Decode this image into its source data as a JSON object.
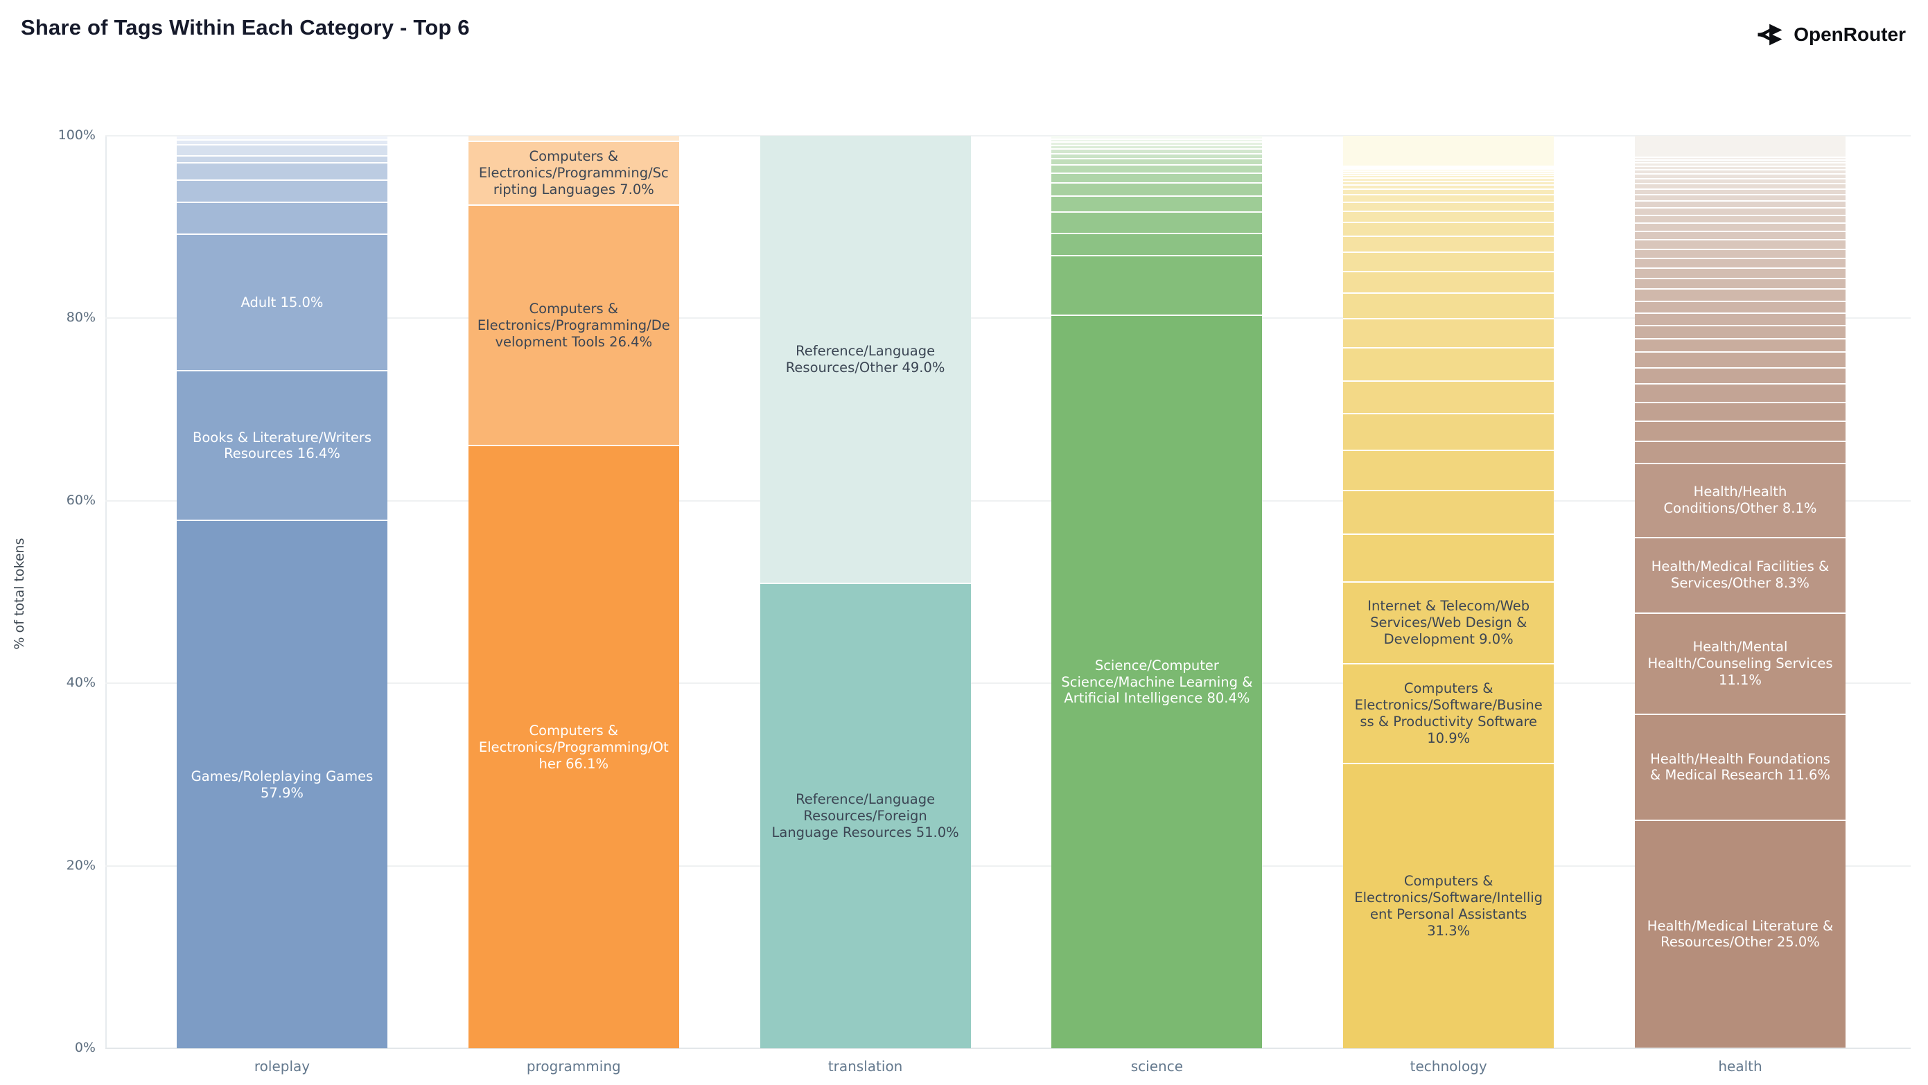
{
  "header": {
    "title": "Share of Tags Within Each Category - Top 6",
    "brand": "OpenRouter",
    "brand_icon": "openrouter-fork-arrows-icon"
  },
  "chart_data": {
    "type": "bar",
    "subtype": "100%-stacked-vertical",
    "title": "Share of Tags Within Each Category - Top 6",
    "xlabel": "",
    "ylabel": "% of total tokens",
    "ylim": [
      0,
      100
    ],
    "yticks": [
      "0%",
      "20%",
      "40%",
      "60%",
      "80%",
      "100%"
    ],
    "grid": "horizontal-faint",
    "legend": "none",
    "note": "Each bar stacks tag shares within one category; segments ordered largest at bottom to smallest at top; only large segments carry labels. Unlabeled small segment values are estimated from pixel heights.",
    "categories": [
      {
        "name": "roleplay",
        "color_dark": "#7d9cc5",
        "color_light": "#eff3fa",
        "segments_top_to_bottom": [
          {
            "v": 0.4
          },
          {
            "v": 0.5
          },
          {
            "v": 1.2
          },
          {
            "v": 0.8
          },
          {
            "v": 1.9
          },
          {
            "v": 2.4
          },
          {
            "v": 3.5
          },
          {
            "v": 15.0,
            "label": "Adult 15.0%",
            "tc": "w"
          },
          {
            "v": 16.4,
            "label": "Books & Literature/Writers Resources 16.4%",
            "tc": "w"
          },
          {
            "v": 57.9,
            "label": "Games/Roleplaying Games 57.9%",
            "tc": "w"
          }
        ]
      },
      {
        "name": "programming",
        "color_dark": "#f99c45",
        "color_light": "#fde8cf",
        "segments_top_to_bottom": [
          {
            "v": 0.5
          },
          {
            "v": 7.0,
            "label": "Computers & Electronics/Programming/Scripting Languages 7.0%",
            "tc": "d"
          },
          {
            "v": 26.4,
            "label": "Computers & Electronics/Programming/Development Tools 26.4%",
            "tc": "d"
          },
          {
            "v": 66.1,
            "label": "Computers & Electronics/Programming/Other 66.1%",
            "tc": "w"
          }
        ]
      },
      {
        "name": "translation",
        "color_dark": "#95cbc2",
        "color_light": "#dcece9",
        "segments_top_to_bottom": [
          {
            "v": 49.0,
            "label": "Reference/Language Resources/Other 49.0%",
            "tc": "d"
          },
          {
            "v": 51.0,
            "label": "Reference/Language Resources/Foreign Language Resources 51.0%",
            "tc": "d"
          }
        ]
      },
      {
        "name": "science",
        "color_dark": "#7bb971",
        "color_light": "#f5faf3",
        "segments_top_to_bottom": [
          {
            "v": 0.3
          },
          {
            "v": 0.3
          },
          {
            "v": 0.4
          },
          {
            "v": 0.4
          },
          {
            "v": 0.5
          },
          {
            "v": 0.5
          },
          {
            "v": 0.7
          },
          {
            "v": 0.9
          },
          {
            "v": 1.1
          },
          {
            "v": 1.4
          },
          {
            "v": 1.8
          },
          {
            "v": 2.3
          },
          {
            "v": 2.5
          },
          {
            "v": 6.5
          },
          {
            "v": 80.4,
            "label": "Science/Computer Science/Machine Learning & Artificial Intelligence 80.4%",
            "tc": "w"
          }
        ]
      },
      {
        "name": "technology",
        "color_dark": "#efce66",
        "color_light": "#fdfae8",
        "segments_top_to_bottom": [
          {
            "v": 3.3
          },
          {
            "v": 0.15
          },
          {
            "v": 0.15
          },
          {
            "v": 0.2
          },
          {
            "v": 0.2
          },
          {
            "v": 0.25
          },
          {
            "v": 0.3
          },
          {
            "v": 0.35
          },
          {
            "v": 0.4
          },
          {
            "v": 0.5
          },
          {
            "v": 0.6
          },
          {
            "v": 0.8
          },
          {
            "v": 1.0
          },
          {
            "v": 1.2
          },
          {
            "v": 1.5
          },
          {
            "v": 1.8
          },
          {
            "v": 2.1
          },
          {
            "v": 2.4
          },
          {
            "v": 2.8
          },
          {
            "v": 3.2
          },
          {
            "v": 3.6
          },
          {
            "v": 3.6
          },
          {
            "v": 4.0
          },
          {
            "v": 4.4
          },
          {
            "v": 4.8
          },
          {
            "v": 5.2
          },
          {
            "v": 9.0,
            "label": "Internet & Telecom/Web Services/Web Design & Development 9.0%",
            "tc": "d"
          },
          {
            "v": 10.9,
            "label": "Computers & Electronics/Software/Business & Productivity Software 10.9%",
            "tc": "d"
          },
          {
            "v": 31.3,
            "label": "Computers & Electronics/Software/Intelligent Personal Assistants 31.3%",
            "tc": "d"
          }
        ]
      },
      {
        "name": "health",
        "color_dark": "#b58e7b",
        "color_light": "#f5f2ee",
        "segments_top_to_bottom": [
          {
            "v": 2.3
          },
          {
            "v": 0.3
          },
          {
            "v": 0.3
          },
          {
            "v": 0.35
          },
          {
            "v": 0.4
          },
          {
            "v": 0.45
          },
          {
            "v": 0.5
          },
          {
            "v": 0.55
          },
          {
            "v": 0.6
          },
          {
            "v": 0.65
          },
          {
            "v": 0.7
          },
          {
            "v": 0.75
          },
          {
            "v": 0.8
          },
          {
            "v": 0.85
          },
          {
            "v": 0.9
          },
          {
            "v": 0.95
          },
          {
            "v": 1.0
          },
          {
            "v": 1.0
          },
          {
            "v": 1.1
          },
          {
            "v": 1.1
          },
          {
            "v": 1.2
          },
          {
            "v": 1.3
          },
          {
            "v": 1.3
          },
          {
            "v": 1.4
          },
          {
            "v": 1.4
          },
          {
            "v": 1.5
          },
          {
            "v": 1.7
          },
          {
            "v": 1.8
          },
          {
            "v": 2.0
          },
          {
            "v": 2.1
          },
          {
            "v": 2.2
          },
          {
            "v": 2.4
          },
          {
            "v": 8.1,
            "label": "Health/Health Conditions/Other 8.1%",
            "tc": "w"
          },
          {
            "v": 8.3,
            "label": "Health/Medical Facilities & Services/Other 8.3%",
            "tc": "w"
          },
          {
            "v": 11.1,
            "label": "Health/Mental Health/Counseling Services 11.1%",
            "tc": "w"
          },
          {
            "v": 11.6,
            "label": "Health/Health Foundations & Medical Research 11.6%",
            "tc": "w"
          },
          {
            "v": 25.0,
            "label": "Health/Medical Literature & Resources/Other 25.0%",
            "tc": "w"
          }
        ]
      }
    ]
  }
}
